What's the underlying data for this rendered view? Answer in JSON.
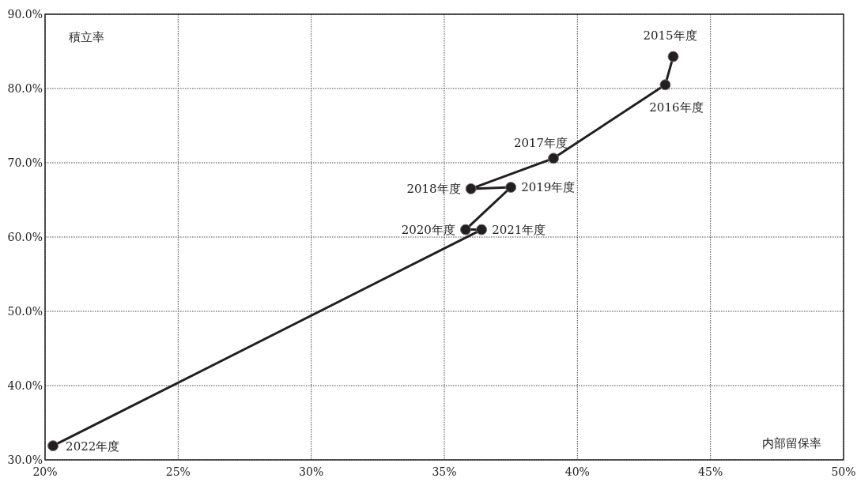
{
  "chart_data": {
    "type": "line",
    "xlabel": "内部留保率",
    "ylabel": "積立率",
    "xlim": [
      20,
      50
    ],
    "ylim": [
      30,
      90
    ],
    "xticks": [
      {
        "value": 20,
        "label": "20%"
      },
      {
        "value": 25,
        "label": "25%"
      },
      {
        "value": 30,
        "label": "30%"
      },
      {
        "value": 35,
        "label": "35%"
      },
      {
        "value": 40,
        "label": "40%"
      },
      {
        "value": 45,
        "label": "45%"
      },
      {
        "value": 50,
        "label": "50%"
      }
    ],
    "yticks": [
      {
        "value": 30,
        "label": "30.0%"
      },
      {
        "value": 40,
        "label": "40.0%"
      },
      {
        "value": 50,
        "label": "50.0%"
      },
      {
        "value": 60,
        "label": "60.0%"
      },
      {
        "value": 70,
        "label": "70.0%"
      },
      {
        "value": 80,
        "label": "80.0%"
      },
      {
        "value": 90,
        "label": "90.0%"
      }
    ],
    "grid": true,
    "marker": "circle",
    "line_style": "solid",
    "series": [
      {
        "color": "#231f20",
        "x": [
          43.6,
          43.3,
          39.1,
          36.0,
          37.5,
          35.8,
          36.4,
          20.3
        ],
        "values": [
          84.3,
          80.5,
          70.6,
          66.5,
          66.7,
          61.0,
          61.0,
          31.9
        ]
      }
    ],
    "annotations": [
      {
        "text": "2015年度",
        "x": 43.6,
        "y": 84.3
      },
      {
        "text": "2016年度",
        "x": 43.3,
        "y": 80.5
      },
      {
        "text": "2017年度",
        "x": 39.1,
        "y": 70.6
      },
      {
        "text": "2018年度",
        "x": 36.0,
        "y": 66.5
      },
      {
        "text": "2019年度",
        "x": 37.5,
        "y": 66.7
      },
      {
        "text": "2020年度",
        "x": 35.8,
        "y": 61.0
      },
      {
        "text": "2021年度",
        "x": 36.4,
        "y": 61.0
      },
      {
        "text": "2022年度",
        "x": 20.3,
        "y": 31.9
      }
    ]
  }
}
